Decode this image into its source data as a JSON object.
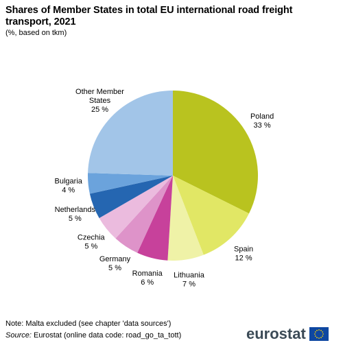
{
  "header": {
    "title": "Shares of Member States in total EU international road freight transport, 2021",
    "subtitle": "(%, based on tkm)"
  },
  "footer": {
    "note": "Note: Malta excluded (see chapter 'data sources')",
    "source_label": "Source:",
    "source_text": " Eurostat (online data code: road_go_ta_tott)",
    "logo_text": "eurostat"
  },
  "chart_data": {
    "type": "pie",
    "title": "Shares of Member States in total EU international road freight transport, 2021",
    "unit": "%",
    "start": "12 o'clock, clockwise",
    "slices": [
      {
        "label": "Poland",
        "value": 33,
        "value_label": "33 %",
        "color": "#b9c31f"
      },
      {
        "label": "Spain",
        "value": 12,
        "value_label": "12 %",
        "color": "#e1e765"
      },
      {
        "label": "Lithuania",
        "value": 7,
        "value_label": "7 %",
        "color": "#eff2a7"
      },
      {
        "label": "Romania",
        "value": 6,
        "value_label": "6 %",
        "color": "#c7419b"
      },
      {
        "label": "Germany",
        "value": 5,
        "value_label": "5 %",
        "color": "#de93c9"
      },
      {
        "label": "Czechia",
        "value": 5,
        "value_label": "5 %",
        "color": "#ebbbde"
      },
      {
        "label": "Netherlands",
        "value": 5,
        "value_label": "5 %",
        "color": "#2566b1"
      },
      {
        "label": "Bulgaria",
        "value": 4,
        "value_label": "4 %",
        "color": "#6ba3dc"
      },
      {
        "label": "Other Member States",
        "value": 25,
        "value_label": "25 %",
        "color": "#a2c5e8",
        "label_lines": [
          "Other Member",
          "States"
        ]
      }
    ]
  }
}
